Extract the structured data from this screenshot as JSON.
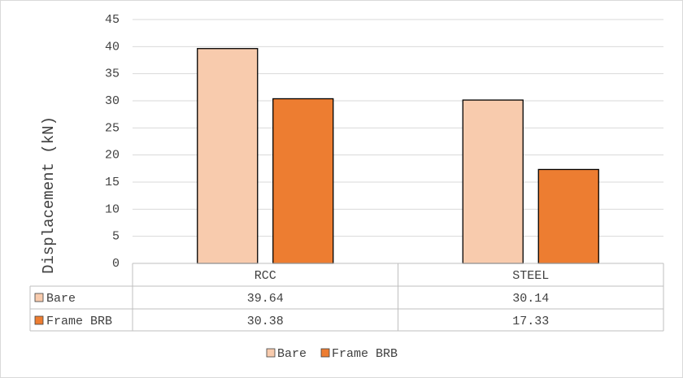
{
  "chart_data": {
    "type": "bar",
    "y_label": "Displacement (kN)",
    "categories": [
      "RCC",
      "STEEL"
    ],
    "series": [
      {
        "name": "Bare",
        "color": "#f8cbad",
        "values": [
          39.64,
          30.14
        ]
      },
      {
        "name": "Frame BRB",
        "color": "#ed7d31",
        "values": [
          30.38,
          17.33
        ]
      }
    ],
    "ylim": [
      0,
      45
    ],
    "yticks": [
      0,
      5,
      10,
      15,
      20,
      25,
      30,
      35,
      40,
      45
    ],
    "grid": true,
    "data_table": true,
    "legend": "bottom"
  }
}
